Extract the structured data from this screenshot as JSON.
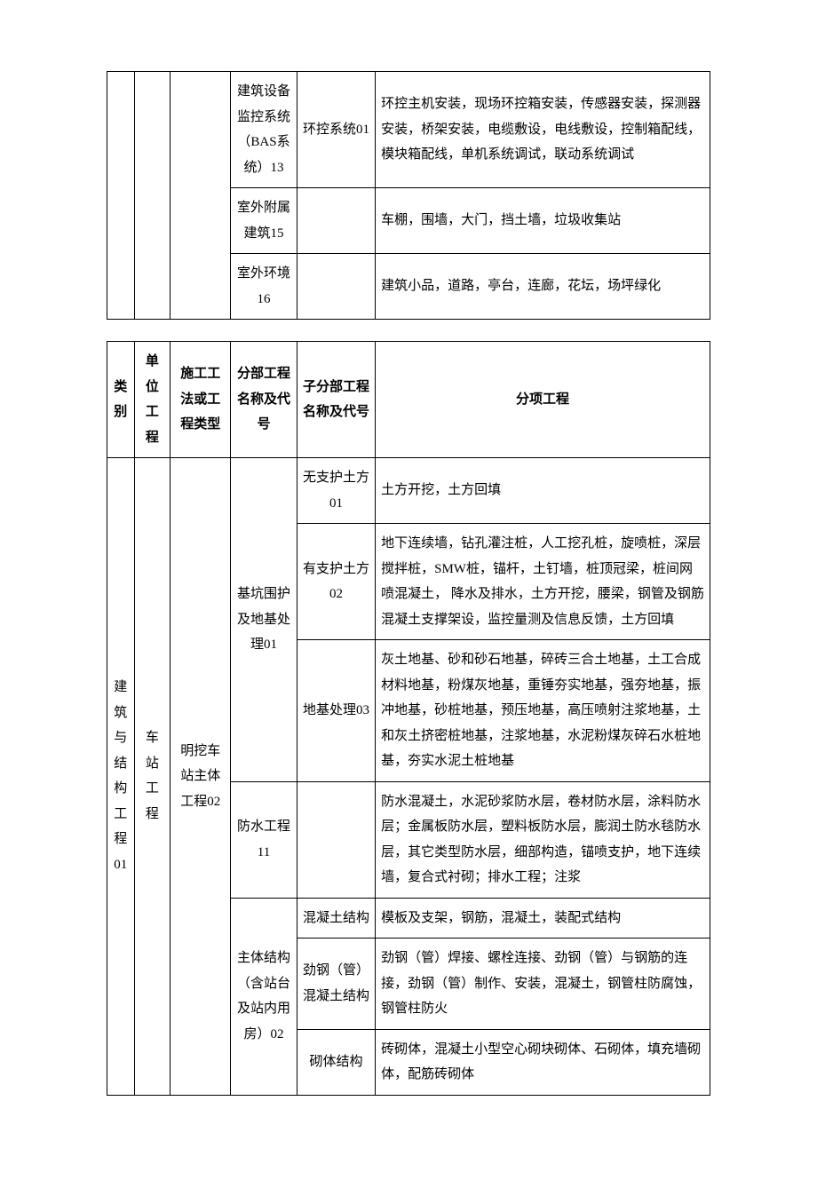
{
  "table1": {
    "columns": [
      "col-a",
      "col-b",
      "col-c",
      "col-d",
      "col-e",
      "col-f"
    ],
    "rows": [
      {
        "c1": "",
        "c2": "",
        "c3": "",
        "c4": "建筑设备监控系统（BAS系统）13",
        "c5": "环控系统01",
        "c6": "环控主机安装，现场环控箱安装，传感器安装，探测器安装，桥架安装，电缆敷设，电线敷设，控制箱配线，模块箱配线，单机系统调试，联动系统调试"
      },
      {
        "c4": "室外附属建筑15",
        "c5": "",
        "c6": "车棚，围墙，大门，挡土墙，垃圾收集站"
      },
      {
        "c4": "室外环境16",
        "c5": "",
        "c6": "建筑小品，道路，亭台，连廊，花坛，场坪绿化"
      }
    ]
  },
  "table2": {
    "header": {
      "h1": "类别",
      "h2": "单位工程",
      "h3": "施工工法或工程类型",
      "h4": "分部工程名称及代号",
      "h5": "子分部工程名称及代号",
      "h6": "分项工程"
    },
    "body": {
      "cat": "建筑与结构工程01",
      "unit": "车站工程",
      "method": "明挖车站主体工程02",
      "groups": [
        {
          "part": "基坑围护及地基处理01",
          "subs": [
            {
              "sub": "无支护土方01",
              "items": "土方开挖，土方回填"
            },
            {
              "sub": "有支护土方02",
              "items": "地下连续墙，钻孔灌注桩，人工挖孔桩，旋喷桩，深层搅拌桩，SMW桩，锚杆，土钉墙，桩顶冠梁，桩间网喷混凝土，\n降水及排水，土方开挖，腰梁，钢管及钢筋混凝土支撑架设，监控量测及信息反馈，土方回填"
            },
            {
              "sub": "地基处理03",
              "items": "灰土地基、砂和砂石地基，碎砖三合土地基，土工合成材料地基，粉煤灰地基，重锤夯实地基，强夯地基，振冲地基，砂桩地基，预压地基，高压喷射注浆地基，土和灰土挤密桩地基，注浆地基，水泥粉煤灰碎石水桩地基，夯实水泥土桩地基"
            }
          ]
        },
        {
          "part": "防水工程11",
          "subs": [
            {
              "sub": "",
              "items": "防水混凝土，水泥砂浆防水层，卷材防水层，涂料防水层；金属板防水层，塑料板防水层，膨润土防水毯防水层，其它类型防水层，细部构造，锚喷支护，地下连续墙，复合式衬砌；排水工程；注浆"
            }
          ]
        },
        {
          "part": "主体结构（含站台及站内用房）02",
          "subs": [
            {
              "sub": "混凝土结构",
              "items": "模板及支架，钢筋，混凝土，装配式结构"
            },
            {
              "sub": "劲钢（管）混凝土结构",
              "items": "劲钢（管）焊接、螺栓连接、劲钢（管）与钢筋的连接，劲钢（管）制作、安装，混凝土，钢管柱防腐蚀，钢管柱防火"
            },
            {
              "sub": "砌体结构",
              "items": "砖砌体，混凝土小型空心砌块砌体、石砌体，填充墙砌体，配筋砖砌体"
            }
          ]
        }
      ]
    }
  }
}
